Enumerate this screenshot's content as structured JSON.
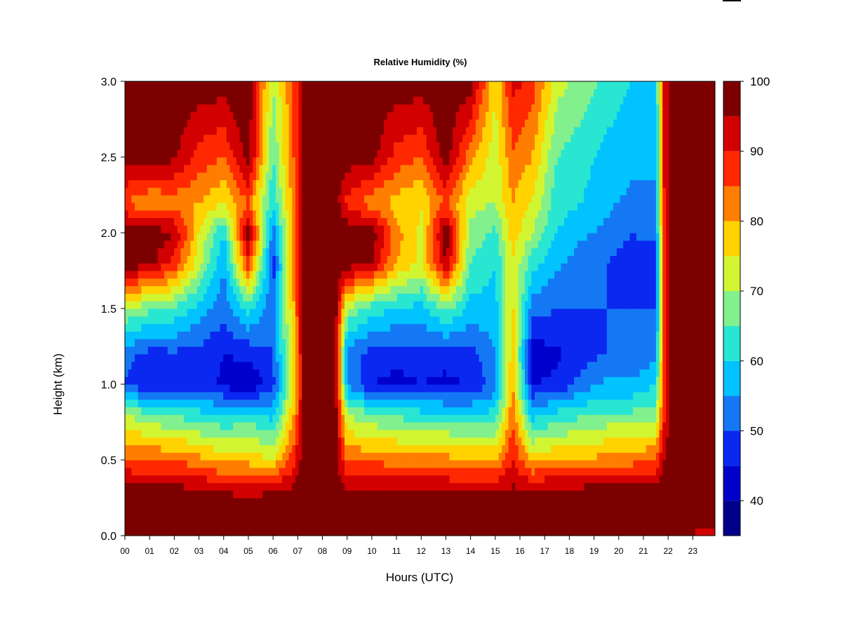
{
  "chart_data": {
    "type": "heatmap",
    "title": "Relative Humidity (%)",
    "xlabel": "Hours (UTC)",
    "ylabel": "Height (km)",
    "xlim": [
      0,
      23.9
    ],
    "ylim": [
      0,
      3.0
    ],
    "x_ticks": [
      "00",
      "01",
      "02",
      "03",
      "04",
      "05",
      "06",
      "07",
      "08",
      "09",
      "10",
      "11",
      "12",
      "13",
      "14",
      "15",
      "16",
      "17",
      "18",
      "19",
      "20",
      "21",
      "22",
      "23"
    ],
    "y_ticks": [
      "0.0",
      "0.5",
      "1.0",
      "1.5",
      "2.0",
      "2.5",
      "3.0"
    ],
    "colorbar": {
      "levels": [
        35,
        40,
        45,
        50,
        55,
        60,
        65,
        70,
        75,
        80,
        85,
        90,
        95,
        100
      ],
      "labels": [
        "40",
        "50",
        "60",
        "70",
        "80",
        "90",
        "100"
      ],
      "colors": [
        "#00008b",
        "#0000cd",
        "#0a28f0",
        "#1478f5",
        "#00c3ff",
        "#28e6d2",
        "#82f08c",
        "#d2f532",
        "#ffd200",
        "#ff7d00",
        "#ff2800",
        "#d20000",
        "#7d0000"
      ]
    },
    "height_axis_km": [
      0.0,
      0.1,
      0.3,
      0.5,
      0.8,
      1.0,
      1.2,
      1.5,
      1.8,
      2.0,
      2.2,
      2.5,
      3.0
    ],
    "time_columns": [
      {
        "hour": 0.0,
        "rh": [
          96,
          98,
          97,
          86,
          70,
          50,
          52,
          70,
          98,
          99,
          85,
          98,
          99
        ]
      },
      {
        "hour": 1.0,
        "rh": [
          96,
          98,
          97,
          85,
          66,
          45,
          48,
          66,
          97,
          99,
          80,
          98,
          99
        ]
      },
      {
        "hour": 2.0,
        "rh": [
          96,
          98,
          97,
          85,
          64,
          47,
          49,
          64,
          88,
          95,
          82,
          96,
          99
        ]
      },
      {
        "hour": 3.0,
        "rh": [
          96,
          98,
          96,
          82,
          62,
          48,
          48,
          58,
          72,
          75,
          80,
          88,
          98
        ]
      },
      {
        "hour": 4.0,
        "rh": [
          96,
          98,
          95,
          78,
          60,
          44,
          45,
          52,
          55,
          60,
          75,
          85,
          98
        ]
      },
      {
        "hour": 5.0,
        "rh": [
          96,
          98,
          94,
          78,
          62,
          40,
          46,
          62,
          88,
          99,
          85,
          98,
          99
        ]
      },
      {
        "hour": 6.0,
        "rh": [
          96,
          98,
          95,
          75,
          58,
          48,
          50,
          52,
          47,
          52,
          60,
          65,
          70
        ]
      },
      {
        "hour": 6.8,
        "rh": [
          96,
          98,
          96,
          88,
          78,
          74,
          76,
          78,
          80,
          82,
          82,
          84,
          85
        ]
      },
      {
        "hour": 7.3,
        "rh": [
          96,
          99,
          99,
          99,
          99,
          99,
          99,
          99,
          99,
          99,
          99,
          99,
          99
        ]
      },
      {
        "hour": 8.5,
        "rh": [
          96,
          99,
          99,
          99,
          99,
          99,
          99,
          99,
          99,
          99,
          99,
          99,
          99
        ]
      },
      {
        "hour": 9.0,
        "rh": [
          96,
          98,
          95,
          84,
          70,
          55,
          52,
          70,
          98,
          99,
          88,
          98,
          99
        ]
      },
      {
        "hour": 10.0,
        "rh": [
          96,
          98,
          95,
          84,
          66,
          45,
          48,
          62,
          95,
          99,
          82,
          97,
          99
        ]
      },
      {
        "hour": 11.0,
        "rh": [
          96,
          98,
          95,
          83,
          64,
          43,
          47,
          60,
          80,
          82,
          78,
          88,
          98
        ]
      },
      {
        "hour": 12.0,
        "rh": [
          96,
          98,
          95,
          82,
          62,
          45,
          48,
          58,
          74,
          74,
          75,
          85,
          98
        ]
      },
      {
        "hour": 13.0,
        "rh": [
          96,
          98,
          95,
          82,
          62,
          43,
          48,
          66,
          95,
          99,
          86,
          98,
          99
        ]
      },
      {
        "hour": 14.0,
        "rh": [
          96,
          98,
          95,
          80,
          60,
          46,
          48,
          58,
          65,
          68,
          72,
          82,
          98
        ]
      },
      {
        "hour": 15.0,
        "rh": [
          96,
          98,
          95,
          80,
          62,
          52,
          55,
          58,
          60,
          64,
          70,
          72,
          75
        ]
      },
      {
        "hour": 15.7,
        "rh": [
          94,
          98,
          96,
          90,
          84,
          80,
          78,
          76,
          75,
          78,
          80,
          84,
          92
        ]
      },
      {
        "hour": 16.5,
        "rh": [
          96,
          98,
          96,
          78,
          58,
          45,
          42,
          52,
          62,
          70,
          74,
          80,
          88
        ]
      },
      {
        "hour": 17.5,
        "rh": [
          96,
          99,
          97,
          80,
          62,
          46,
          44,
          50,
          56,
          60,
          62,
          65,
          72
        ]
      },
      {
        "hour": 18.5,
        "rh": [
          96,
          99,
          97,
          80,
          64,
          52,
          48,
          50,
          52,
          56,
          60,
          62,
          68
        ]
      },
      {
        "hour": 19.5,
        "rh": [
          96,
          99,
          98,
          82,
          66,
          56,
          50,
          50,
          50,
          54,
          56,
          58,
          64
        ]
      },
      {
        "hour": 20.5,
        "rh": [
          96,
          99,
          98,
          83,
          66,
          56,
          50,
          50,
          47,
          50,
          54,
          56,
          60
        ]
      },
      {
        "hour": 21.5,
        "rh": [
          96,
          99,
          98,
          85,
          68,
          60,
          54,
          50,
          46,
          52,
          54,
          56,
          58
        ]
      },
      {
        "hour": 21.85,
        "rh": [
          96,
          99,
          98,
          95,
          90,
          88,
          88,
          88,
          88,
          90,
          90,
          92,
          92
        ]
      },
      {
        "hour": 22.2,
        "rh": [
          97,
          99,
          99,
          99,
          99,
          99,
          99,
          99,
          99,
          99,
          99,
          99,
          99
        ]
      },
      {
        "hour": 23.5,
        "rh": [
          92,
          99,
          99,
          99,
          99,
          99,
          99,
          99,
          99,
          99,
          99,
          99,
          99
        ]
      },
      {
        "hour": 23.9,
        "rh": [
          88,
          99,
          99,
          99,
          99,
          99,
          99,
          99,
          99,
          99,
          99,
          99,
          99
        ]
      }
    ]
  }
}
